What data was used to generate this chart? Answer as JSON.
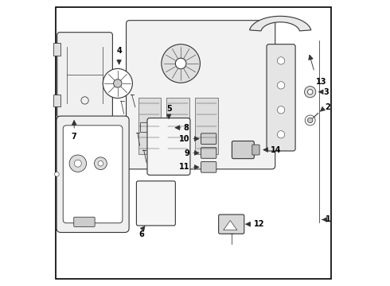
{
  "background_color": "#ffffff",
  "border_color": "#000000",
  "line_color": "#333333",
  "text_color": "#000000",
  "fig_width": 4.9,
  "fig_height": 3.6,
  "dpi": 100
}
